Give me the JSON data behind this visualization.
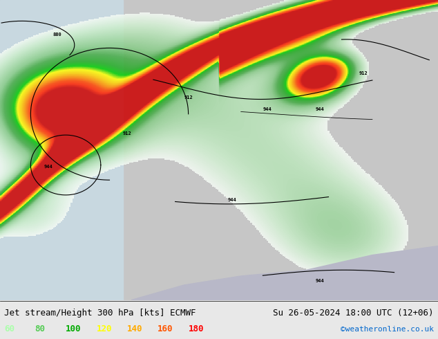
{
  "title_left": "Jet stream/Height 300 hPa [kts] ECMWF",
  "title_right": "Su 26-05-2024 18:00 UTC (12+06)",
  "credit": "©weatheronline.co.uk",
  "legend_values": [
    60,
    80,
    100,
    120,
    140,
    160,
    180
  ],
  "legend_colors": [
    "#aaffaa",
    "#55cc55",
    "#00aa00",
    "#ffff00",
    "#ffaa00",
    "#ff5500",
    "#ff0000"
  ],
  "bg_color": "#e8e8e8",
  "map_bg": "#d0d0d0",
  "title_fontsize": 9,
  "credit_fontsize": 8,
  "legend_fontsize": 9,
  "bottom_bar_color": "#f0f0f0",
  "figsize": [
    6.34,
    4.9
  ],
  "dpi": 100
}
